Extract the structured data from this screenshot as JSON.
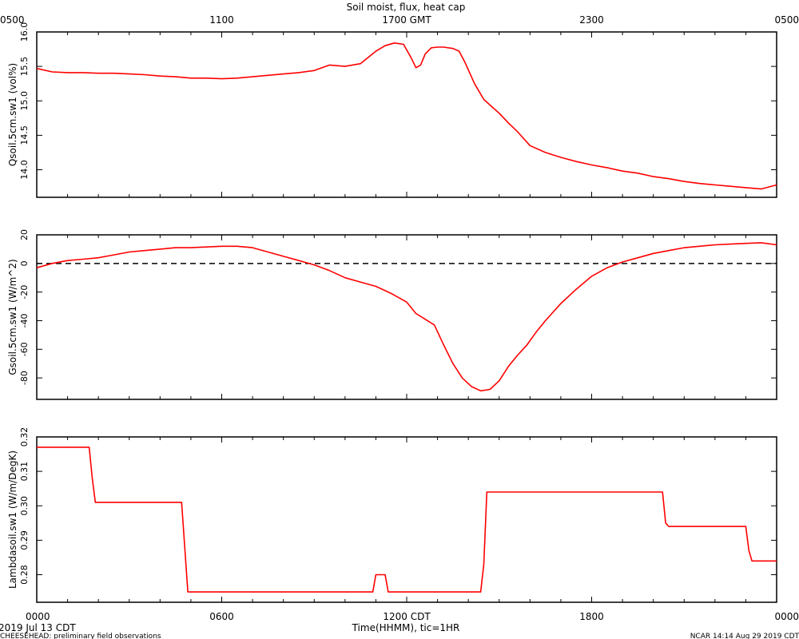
{
  "title": "Soil moist, flux, heat cap",
  "top_axis_ticks": [
    "0500",
    "1100",
    "1700 GMT",
    "2300",
    "0500"
  ],
  "bottom_axis_ticks": [
    "0000",
    "0600",
    "1200 CDT",
    "1800",
    "0000"
  ],
  "xlabel": "Time(HHMM), tic=1HR",
  "footer": {
    "date": "2019 Jul 13 CDT",
    "left_note": "CHEESEHEAD: preliminary field observations",
    "right_note": "NCAR 14:14 Aug 29 2019 CDT"
  },
  "colors": {
    "series": "#ff0000",
    "axes": "#000000",
    "zero_line": "#000000"
  },
  "chart_data": [
    {
      "type": "line",
      "ylabel": "Qsoil.5cm.sw1 (vol%)",
      "ylim": [
        13.6,
        16.0
      ],
      "yticks": [
        "14.0",
        "14.5",
        "15.0",
        "15.5",
        "16.0"
      ],
      "x_hours": [
        0,
        0.5,
        1,
        1.5,
        2,
        2.5,
        3,
        3.5,
        4,
        4.5,
        5,
        5.5,
        6,
        6.5,
        7,
        7.5,
        8,
        8.5,
        9,
        9.5,
        10,
        10.5,
        11,
        11.3,
        11.6,
        11.9,
        12.15,
        12.3,
        12.45,
        12.6,
        12.8,
        13.0,
        13.2,
        13.5,
        13.7,
        13.9,
        14.2,
        14.5,
        14.8,
        15.0,
        15.3,
        15.6,
        16.0,
        16.5,
        17,
        17.5,
        18,
        18.5,
        19,
        19.5,
        20,
        20.5,
        21,
        21.5,
        22,
        22.5,
        23,
        23.5,
        24
      ],
      "y": [
        15.47,
        15.42,
        15.41,
        15.41,
        15.4,
        15.4,
        15.39,
        15.38,
        15.36,
        15.35,
        15.33,
        15.33,
        15.32,
        15.33,
        15.35,
        15.37,
        15.39,
        15.41,
        15.44,
        15.52,
        15.5,
        15.54,
        15.72,
        15.8,
        15.84,
        15.82,
        15.62,
        15.48,
        15.52,
        15.68,
        15.77,
        15.78,
        15.78,
        15.76,
        15.72,
        15.55,
        15.25,
        15.02,
        14.9,
        14.82,
        14.68,
        14.55,
        14.35,
        14.25,
        14.18,
        14.12,
        14.07,
        14.03,
        13.98,
        13.95,
        13.9,
        13.87,
        13.83,
        13.8,
        13.78,
        13.76,
        13.74,
        13.72,
        13.78
      ]
    },
    {
      "type": "line",
      "ylabel": "Gsoil.5cm.sw1 (W/m^2)",
      "ylim": [
        -95,
        20
      ],
      "yticks": [
        "-80",
        "-60",
        "-40",
        "-20",
        "0",
        "20"
      ],
      "reference_line": 0,
      "x_hours": [
        0,
        0.5,
        1,
        1.5,
        2,
        2.5,
        3,
        3.5,
        4,
        4.5,
        5,
        5.5,
        6,
        6.5,
        7,
        7.5,
        8,
        8.5,
        9,
        9.5,
        10,
        10.5,
        11,
        11.5,
        12,
        12.3,
        12.6,
        12.9,
        13.2,
        13.5,
        13.8,
        14.1,
        14.4,
        14.7,
        15.0,
        15.3,
        15.6,
        15.9,
        16.2,
        16.5,
        17,
        17.5,
        18,
        18.5,
        19,
        19.5,
        20,
        20.5,
        21,
        21.5,
        22,
        22.5,
        23,
        23.5,
        24
      ],
      "y": [
        -3,
        0,
        2,
        3,
        4,
        6,
        8,
        9,
        10,
        11,
        11,
        11.5,
        12,
        12,
        11,
        8,
        5,
        2,
        -1,
        -5,
        -10,
        -13,
        -16,
        -21,
        -27,
        -35,
        -39,
        -43,
        -57,
        -70,
        -80,
        -86,
        -89,
        -88,
        -82,
        -72,
        -64,
        -57,
        -48,
        -40,
        -28,
        -18,
        -9,
        -3,
        1,
        4,
        7,
        9,
        11,
        12,
        13,
        13.5,
        14,
        14.5,
        13
      ]
    },
    {
      "type": "line",
      "ylabel": "Lambdasoil.sw1 (W/m/DegK)",
      "ylim": [
        0.272,
        0.32
      ],
      "yticks": [
        "0.28",
        "0.29",
        "0.30",
        "0.31",
        "0.32"
      ],
      "x_hours": [
        0,
        1.7,
        1.8,
        1.9,
        4.7,
        4.8,
        4.9,
        10.9,
        11.0,
        11.3,
        11.4,
        14.4,
        14.5,
        14.6,
        20.3,
        20.4,
        20.5,
        23.0,
        23.1,
        23.2,
        24.0
      ],
      "y": [
        0.317,
        0.317,
        0.308,
        0.301,
        0.301,
        0.288,
        0.275,
        0.275,
        0.28,
        0.28,
        0.275,
        0.275,
        0.283,
        0.304,
        0.304,
        0.295,
        0.294,
        0.294,
        0.287,
        0.284,
        0.284
      ]
    }
  ]
}
